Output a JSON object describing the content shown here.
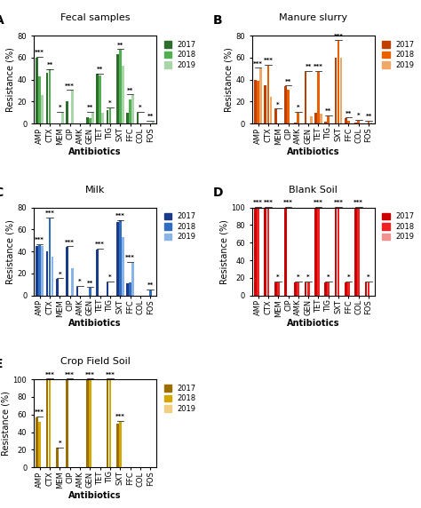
{
  "chart_data": [
    {
      "type": "bar",
      "title": "Fecal samples",
      "panel_label": "A",
      "x_label": "Antibiotics",
      "y_label": "Resistance (%)",
      "categories": [
        "AMP",
        "CTX",
        "MEM",
        "CIP",
        "AMK",
        "GEN",
        "TET",
        "TIG",
        "SXT",
        "FFC",
        "COL",
        "FOS"
      ],
      "series": [
        {
          "name": "2017",
          "color": "#2d6e2d",
          "values": [
            60,
            46,
            0,
            20,
            0,
            6,
            45,
            12,
            63,
            10,
            10,
            0
          ]
        },
        {
          "name": "2018",
          "color": "#52b052",
          "values": [
            43,
            49,
            0,
            0,
            0,
            5,
            44,
            14,
            67,
            22,
            0,
            0
          ]
        },
        {
          "name": "2019",
          "color": "#aad4aa",
          "values": [
            26,
            0,
            10,
            30,
            0,
            10,
            10,
            0,
            53,
            26,
            0,
            2
          ]
        }
      ],
      "ylim": [
        0,
        80
      ],
      "yticks": [
        0,
        20,
        40,
        60,
        80
      ],
      "legend": "upper left",
      "annotations": [
        {
          "category": "AMP",
          "text": "***"
        },
        {
          "category": "CTX",
          "text": "**"
        },
        {
          "category": "MEM",
          "text": "*"
        },
        {
          "category": "CIP",
          "text": "***"
        },
        {
          "category": "GEN",
          "text": "**"
        },
        {
          "category": "TET",
          "text": "**"
        },
        {
          "category": "TIG",
          "text": "*"
        },
        {
          "category": "SXT",
          "text": "**"
        },
        {
          "category": "FFC",
          "text": "**"
        },
        {
          "category": "COL",
          "text": "*"
        },
        {
          "category": "FOS",
          "text": "**"
        }
      ]
    },
    {
      "type": "bar",
      "title": "Manure slurry",
      "panel_label": "B",
      "x_label": "Antibiotics",
      "y_label": "Resistance (%)",
      "categories": [
        "AMP",
        "CTX",
        "MEM",
        "CIP",
        "AMK",
        "GEN",
        "TET",
        "TIG",
        "SXT",
        "FFC",
        "COL",
        "FOS"
      ],
      "series": [
        {
          "name": "2017",
          "color": "#c04000",
          "values": [
            40,
            35,
            13,
            34,
            1,
            47,
            10,
            2,
            60,
            5,
            1,
            0
          ]
        },
        {
          "name": "2018",
          "color": "#e86000",
          "values": [
            39,
            53,
            0,
            31,
            10,
            0,
            47,
            7,
            75,
            3,
            3,
            2
          ]
        },
        {
          "name": "2019",
          "color": "#f0a868",
          "values": [
            50,
            24,
            0,
            0,
            0,
            7,
            9,
            0,
            60,
            0,
            0,
            1
          ]
        }
      ],
      "ylim": [
        0,
        80
      ],
      "yticks": [
        0,
        20,
        40,
        60,
        80
      ],
      "legend": "upper left",
      "annotations": [
        {
          "category": "AMP",
          "text": "***"
        },
        {
          "category": "CTX",
          "text": "***"
        },
        {
          "category": "MEM",
          "text": "*"
        },
        {
          "category": "CIP",
          "text": "**"
        },
        {
          "category": "AMK",
          "text": "*"
        },
        {
          "category": "GEN",
          "text": "**"
        },
        {
          "category": "TET",
          "text": "***"
        },
        {
          "category": "TIG",
          "text": "**"
        },
        {
          "category": "SXT",
          "text": "***"
        },
        {
          "category": "FFC",
          "text": "**"
        },
        {
          "category": "COL",
          "text": "*"
        },
        {
          "category": "FOS",
          "text": "**"
        }
      ]
    },
    {
      "type": "bar",
      "title": "Milk",
      "panel_label": "C",
      "x_label": "Antibiotics",
      "y_label": "Resistance (%)",
      "categories": [
        "AMP",
        "CTX",
        "MEM",
        "CIP",
        "AMK",
        "GEN",
        "TET",
        "TIG",
        "SXT",
        "FFC",
        "COL",
        "FOS"
      ],
      "series": [
        {
          "name": "2017",
          "color": "#1a3a8a",
          "values": [
            45,
            40,
            15,
            44,
            8,
            0,
            42,
            12,
            67,
            11,
            0,
            0
          ]
        },
        {
          "name": "2018",
          "color": "#2e6dbf",
          "values": [
            46,
            70,
            0,
            0,
            0,
            7,
            0,
            0,
            68,
            12,
            0,
            5
          ]
        },
        {
          "name": "2019",
          "color": "#8ab4e8",
          "values": [
            45,
            35,
            0,
            25,
            0,
            0,
            0,
            0,
            53,
            30,
            0,
            0
          ]
        }
      ],
      "ylim": [
        0,
        80
      ],
      "yticks": [
        0,
        20,
        40,
        60,
        80
      ],
      "legend": "upper left",
      "annotations": [
        {
          "category": "AMP",
          "text": "***"
        },
        {
          "category": "CTX",
          "text": "***"
        },
        {
          "category": "MEM",
          "text": "*"
        },
        {
          "category": "CIP",
          "text": "***"
        },
        {
          "category": "AMK",
          "text": "*"
        },
        {
          "category": "GEN",
          "text": "**"
        },
        {
          "category": "TET",
          "text": "***"
        },
        {
          "category": "TIG",
          "text": "*"
        },
        {
          "category": "SXT",
          "text": "***"
        },
        {
          "category": "FFC",
          "text": "***"
        },
        {
          "category": "FOS",
          "text": "**"
        }
      ]
    },
    {
      "type": "bar",
      "title": "Blank Soil",
      "panel_label": "D",
      "x_label": "Antibiotics",
      "y_label": "Resistance (%)",
      "categories": [
        "AMP",
        "CTX",
        "MEM",
        "CIP",
        "AMK",
        "GEN",
        "TET",
        "TIG",
        "SXT",
        "FFC",
        "COL",
        "FOS"
      ],
      "series": [
        {
          "name": "2017",
          "color": "#cc0000",
          "values": [
            100,
            100,
            15,
            100,
            15,
            15,
            100,
            15,
            100,
            15,
            100,
            15
          ]
        },
        {
          "name": "2018",
          "color": "#ee2222",
          "values": [
            100,
            100,
            15,
            0,
            15,
            15,
            100,
            15,
            100,
            15,
            100,
            15
          ]
        },
        {
          "name": "2019",
          "color": "#f59090",
          "values": [
            0,
            0,
            0,
            0,
            0,
            0,
            0,
            0,
            0,
            0,
            0,
            0
          ]
        }
      ],
      "ylim": [
        0,
        100
      ],
      "yticks": [
        0,
        20,
        40,
        60,
        80,
        100
      ],
      "legend": "upper left",
      "annotations": [
        {
          "category": "AMP",
          "text": "***"
        },
        {
          "category": "CTX",
          "text": "***"
        },
        {
          "category": "MEM",
          "text": "*"
        },
        {
          "category": "CIP",
          "text": "***"
        },
        {
          "category": "AMK",
          "text": "*"
        },
        {
          "category": "GEN",
          "text": "*"
        },
        {
          "category": "TET",
          "text": "***"
        },
        {
          "category": "TIG",
          "text": "*"
        },
        {
          "category": "SXT",
          "text": "***"
        },
        {
          "category": "FFC",
          "text": "*"
        },
        {
          "category": "COL",
          "text": "***"
        },
        {
          "category": "FOS",
          "text": "*"
        }
      ]
    },
    {
      "type": "bar",
      "title": "Crop Field Soil",
      "panel_label": "E",
      "x_label": "Antibiotics",
      "y_label": "Resistance (%)",
      "categories": [
        "AMP",
        "CTX",
        "MEM",
        "CIP",
        "AMK",
        "GEN",
        "TET",
        "TIG",
        "SXT",
        "FFC",
        "COL",
        "FOS"
      ],
      "series": [
        {
          "name": "2017",
          "color": "#9b7000",
          "values": [
            57,
            100,
            22,
            100,
            0,
            100,
            0,
            100,
            50,
            0,
            0,
            0
          ]
        },
        {
          "name": "2018",
          "color": "#d4a800",
          "values": [
            52,
            100,
            0,
            0,
            0,
            100,
            0,
            100,
            52,
            0,
            0,
            0
          ]
        },
        {
          "name": "2019",
          "color": "#f0d080",
          "values": [
            0,
            0,
            0,
            0,
            0,
            0,
            0,
            0,
            0,
            0,
            0,
            0
          ]
        }
      ],
      "ylim": [
        0,
        100
      ],
      "yticks": [
        0,
        20,
        40,
        60,
        80,
        100
      ],
      "legend": "upper left",
      "annotations": [
        {
          "category": "AMP",
          "text": "***"
        },
        {
          "category": "CTX",
          "text": "***"
        },
        {
          "category": "MEM",
          "text": "*"
        },
        {
          "category": "CIP",
          "text": "***"
        },
        {
          "category": "GEN",
          "text": "***"
        },
        {
          "category": "TIG",
          "text": "***"
        },
        {
          "category": "SXT",
          "text": "***"
        }
      ]
    }
  ]
}
